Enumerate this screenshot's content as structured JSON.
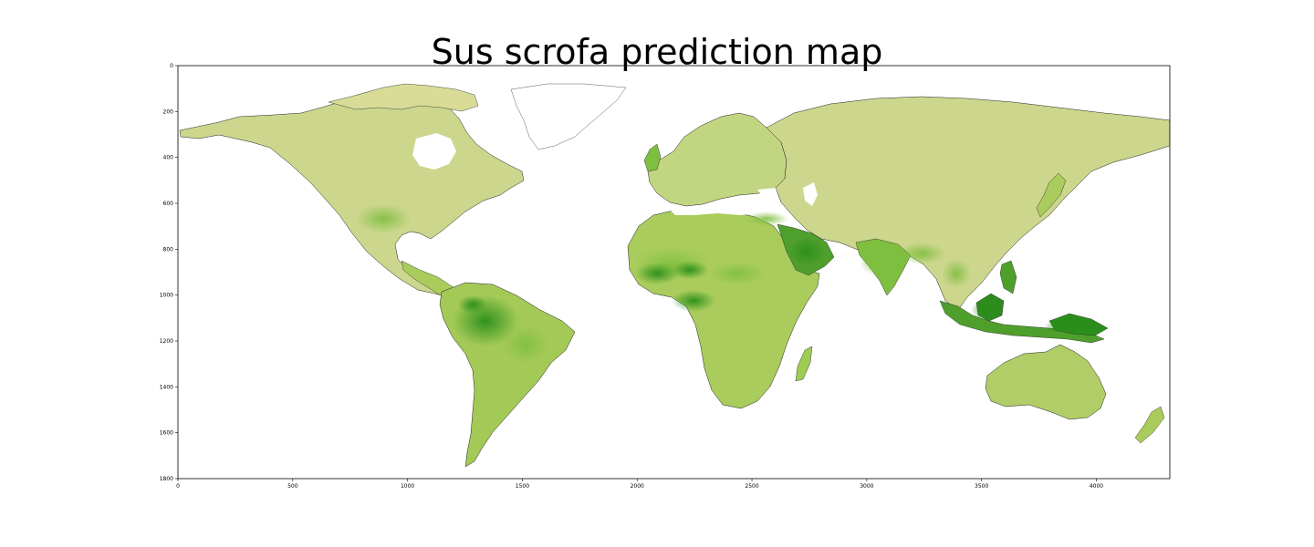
{
  "title": "Sus scrofa prediction map",
  "chart_data": {
    "type": "heatmap",
    "title": "Sus scrofa prediction map",
    "xlabel": "",
    "ylabel": "",
    "xlim": [
      0,
      4320
    ],
    "ylim": [
      1800,
      0
    ],
    "x_ticks": [
      "0",
      "500",
      "1000",
      "1500",
      "2000",
      "2500",
      "3000",
      "3500",
      "4000"
    ],
    "y_ticks": [
      "0",
      "200",
      "400",
      "600",
      "800",
      "1000",
      "1200",
      "1400",
      "1600",
      "1800"
    ],
    "x_tick_values": [
      0,
      500,
      1000,
      1500,
      2000,
      2500,
      3000,
      3500,
      4000
    ],
    "y_tick_values": [
      0,
      200,
      400,
      600,
      800,
      1000,
      1200,
      1400,
      1600,
      1800
    ],
    "colormap": {
      "low": "#d8dc97",
      "mid": "#9ccc55",
      "high": "#2a8f1a",
      "background": "#ffffff"
    }
  }
}
